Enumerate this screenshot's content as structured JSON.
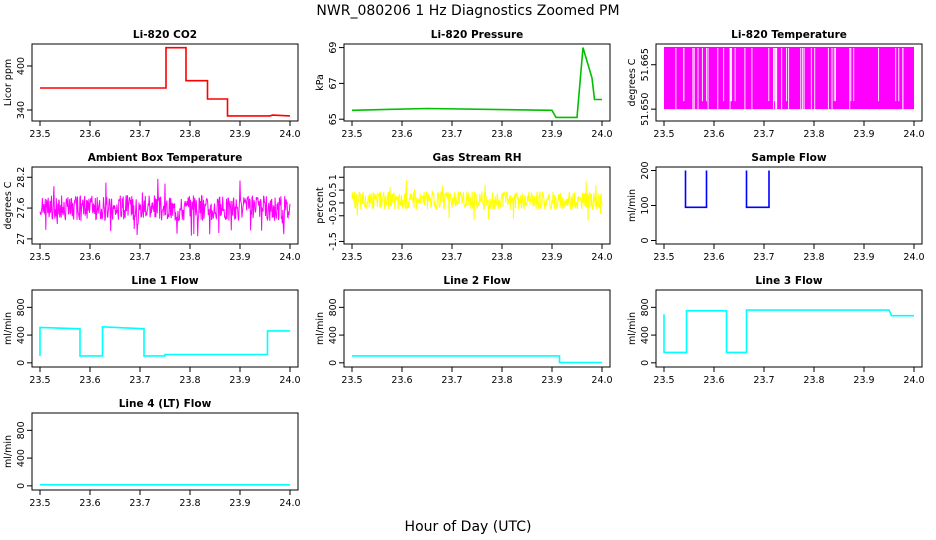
{
  "title": "NWR_080206  1 Hz Diagnostics Zoomed PM",
  "xlabel": "Hour of Day (UTC)",
  "colors": {
    "red": "#ff0000",
    "green": "#00c000",
    "magenta": "#ff00ff",
    "yellow": "#ffff00",
    "blue": "#0000ff",
    "cyan": "#00ffff"
  },
  "chart_data": [
    {
      "type": "line",
      "title": "Li-820 CO2",
      "ylabel": "Licor ppm",
      "color": "red",
      "xlim": [
        23.5,
        24.0
      ],
      "ylim": [
        325,
        430
      ],
      "yticks": [
        340,
        400
      ],
      "xticks": [
        23.5,
        23.6,
        23.7,
        23.8,
        23.9,
        24.0
      ],
      "series": [
        {
          "x": [
            23.5,
            23.745,
            23.752,
            23.752,
            23.792,
            23.792,
            23.835,
            23.835,
            23.875,
            23.875,
            23.96,
            23.965,
            24.0
          ],
          "y": [
            370,
            370,
            370,
            425,
            425,
            380,
            380,
            355,
            355,
            332,
            332,
            333,
            332
          ]
        }
      ]
    },
    {
      "type": "line",
      "title": "Li-820 Pressure",
      "ylabel": "kPa",
      "color": "green",
      "xlim": [
        23.5,
        24.0
      ],
      "ylim": [
        64.9,
        69.2
      ],
      "yticks": [
        65,
        67,
        69
      ],
      "xticks": [
        23.5,
        23.6,
        23.7,
        23.8,
        23.9,
        24.0
      ],
      "series": [
        {
          "x": [
            23.5,
            23.65,
            23.9,
            23.908,
            23.95,
            23.962,
            23.98,
            23.985,
            24.0
          ],
          "y": [
            65.5,
            65.6,
            65.5,
            65.1,
            65.1,
            69.0,
            67.3,
            66.1,
            66.1
          ]
        }
      ]
    },
    {
      "type": "line",
      "title": "Li-820 Temperature",
      "ylabel": "degrees C",
      "color": "magenta",
      "xlim": [
        23.5,
        24.0
      ],
      "ylim": [
        51.646,
        51.672
      ],
      "yticks": [
        51.65,
        51.665
      ],
      "ytick_labels": [
        "51.650",
        "51.665"
      ],
      "xticks": [
        23.5,
        23.6,
        23.7,
        23.8,
        23.9,
        24.0
      ],
      "series": [
        {
          "band": [
            51.65,
            51.671
          ]
        }
      ]
    },
    {
      "type": "line",
      "title": "Ambient Box Temperature",
      "ylabel": "degrees C",
      "color": "magenta",
      "xlim": [
        23.5,
        24.0
      ],
      "ylim": [
        26.9,
        28.4
      ],
      "yticks": [
        27.0,
        27.6,
        28.2
      ],
      "xticks": [
        23.5,
        23.6,
        23.7,
        23.8,
        23.9,
        24.0
      ],
      "series": [
        {
          "mean": 27.6,
          "noise": 0.25
        }
      ]
    },
    {
      "type": "line",
      "title": "Gas Stream RH",
      "ylabel": "percent",
      "color": "yellow",
      "xlim": [
        23.5,
        24.0
      ],
      "ylim": [
        -1.6,
        1.4
      ],
      "yticks": [
        -1.5,
        -0.5,
        0.0,
        0.5,
        1.0
      ],
      "xticks": [
        23.5,
        23.6,
        23.7,
        23.8,
        23.9,
        24.0
      ],
      "series": [
        {
          "mean": 0.1,
          "noise": 0.35
        }
      ]
    },
    {
      "type": "line",
      "title": "Sample Flow",
      "ylabel": "ml/min",
      "color": "blue",
      "xlim": [
        23.5,
        24.0
      ],
      "ylim": [
        -10,
        210
      ],
      "yticks": [
        0,
        100,
        200
      ],
      "xticks": [
        23.5,
        23.6,
        23.7,
        23.8,
        23.9,
        24.0
      ],
      "series": [
        {
          "x": [
            23.543,
            23.543,
            23.585,
            23.585
          ],
          "y": [
            200,
            95,
            95,
            200
          ]
        },
        {
          "x": [
            23.665,
            23.665,
            23.71,
            23.71
          ],
          "y": [
            200,
            95,
            95,
            200
          ]
        }
      ]
    },
    {
      "type": "line",
      "title": "Line 1 Flow",
      "ylabel": "ml/min",
      "color": "cyan",
      "xlim": [
        23.5,
        24.0
      ],
      "ylim": [
        -60,
        1050
      ],
      "yticks": [
        0,
        400,
        800
      ],
      "xticks": [
        23.5,
        23.6,
        23.7,
        23.8,
        23.9,
        24.0
      ],
      "series": [
        {
          "x": [
            23.5,
            23.5,
            23.58,
            23.58,
            23.625,
            23.625,
            23.708,
            23.708,
            23.75,
            23.75,
            23.955,
            23.955,
            24.0
          ],
          "y": [
            100,
            510,
            490,
            100,
            100,
            520,
            490,
            100,
            100,
            120,
            120,
            460,
            460
          ]
        }
      ]
    },
    {
      "type": "line",
      "title": "Line 2 Flow",
      "ylabel": "ml/min",
      "color": "cyan",
      "xlim": [
        23.5,
        24.0
      ],
      "ylim": [
        -60,
        1050
      ],
      "yticks": [
        0,
        400,
        800
      ],
      "xticks": [
        23.5,
        23.6,
        23.7,
        23.8,
        23.9,
        24.0
      ],
      "series": [
        {
          "x": [
            23.5,
            23.915,
            23.915,
            24.0
          ],
          "y": [
            100,
            100,
            5,
            5
          ]
        }
      ]
    },
    {
      "type": "line",
      "title": "Line 3 Flow",
      "ylabel": "ml/min",
      "color": "cyan",
      "xlim": [
        23.5,
        24.0
      ],
      "ylim": [
        -60,
        1050
      ],
      "yticks": [
        0,
        400,
        800
      ],
      "xticks": [
        23.5,
        23.6,
        23.7,
        23.8,
        23.9,
        24.0
      ],
      "series": [
        {
          "x": [
            23.5,
            23.5,
            23.545,
            23.545,
            23.625,
            23.625,
            23.665,
            23.665,
            23.95,
            23.955,
            24.0
          ],
          "y": [
            700,
            150,
            150,
            750,
            750,
            150,
            150,
            760,
            760,
            680,
            680
          ]
        }
      ]
    },
    {
      "type": "line",
      "title": "Line 4 (LT) Flow",
      "ylabel": "ml/min",
      "color": "cyan",
      "xlim": [
        23.5,
        24.0
      ],
      "ylim": [
        -60,
        1050
      ],
      "yticks": [
        0,
        400,
        800
      ],
      "xticks": [
        23.5,
        23.6,
        23.7,
        23.8,
        23.9,
        24.0
      ],
      "series": [
        {
          "x": [
            23.5,
            24.0
          ],
          "y": [
            15,
            15
          ]
        }
      ]
    }
  ]
}
